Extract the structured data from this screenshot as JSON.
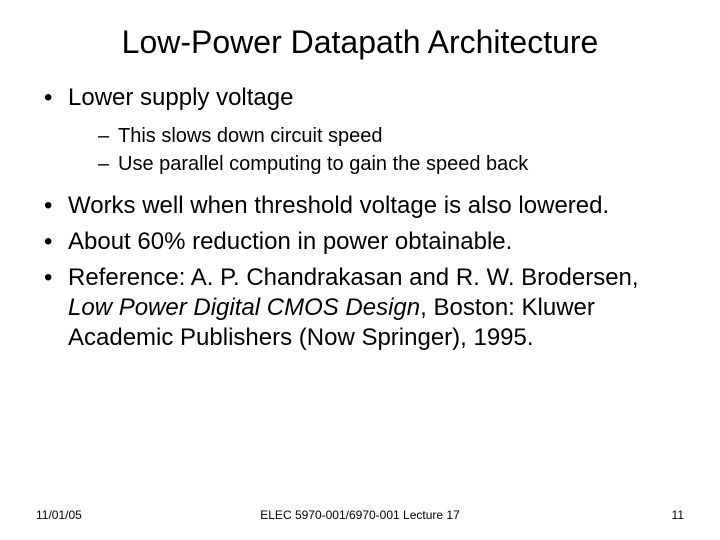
{
  "title": "Low-Power Datapath Architecture",
  "bullets": {
    "b1": "Lower supply voltage",
    "b1_sub1": "This slows down circuit speed",
    "b1_sub2": "Use parallel computing to gain the speed back",
    "b2": "Works well when threshold voltage is also lowered.",
    "b3": "About 60% reduction in power obtainable.",
    "b4_pre": "Reference: A. P. Chandrakasan and R. W. Brodersen, ",
    "b4_italic": "Low Power Digital CMOS Design",
    "b4_post": ", Boston: Kluwer Academic Publishers (Now Springer), 1995."
  },
  "footer": {
    "date": "11/01/05",
    "center": "ELEC 5970-001/6970-001 Lecture 17",
    "page": "11"
  },
  "style": {
    "background_color": "#ffffff",
    "text_color": "#000000",
    "title_fontsize": 32,
    "body_fontsize": 24,
    "sub_fontsize": 20,
    "footer_fontsize": 12,
    "font_family": "Arial"
  }
}
